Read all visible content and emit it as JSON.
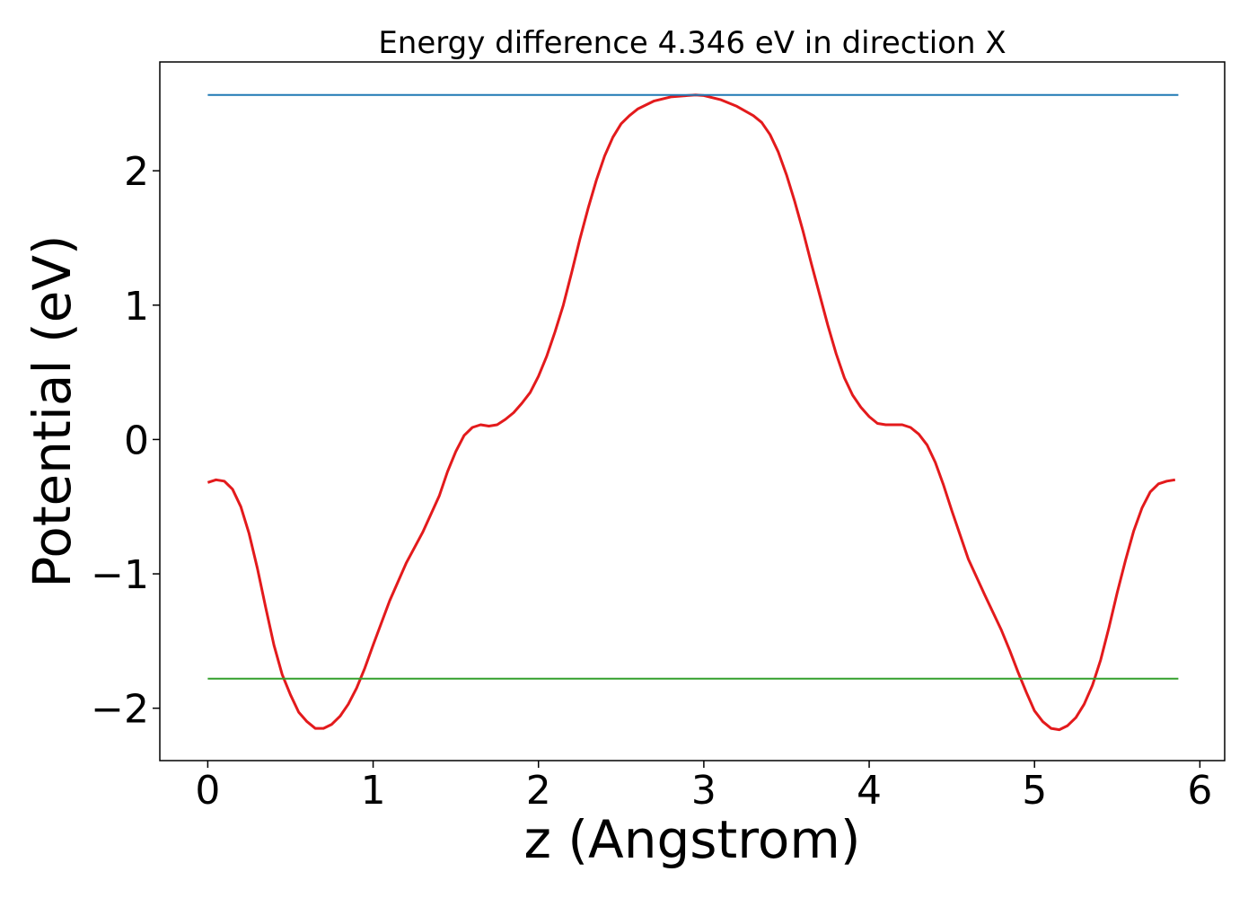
{
  "chart_data": {
    "type": "line",
    "title": "Energy difference 4.346 eV in direction X",
    "xlabel": "z (Angstrom)",
    "ylabel": "Potential (eV)",
    "xlim": [
      -0.29,
      6.15
    ],
    "ylim": [
      -2.39,
      2.81
    ],
    "x_ticks": [
      {
        "value": 0,
        "label": "0"
      },
      {
        "value": 1,
        "label": "1"
      },
      {
        "value": 2,
        "label": "2"
      },
      {
        "value": 3,
        "label": "3"
      },
      {
        "value": 4,
        "label": "4"
      },
      {
        "value": 5,
        "label": "5"
      },
      {
        "value": 6,
        "label": "6"
      }
    ],
    "y_ticks": [
      {
        "value": -2,
        "label": "−2"
      },
      {
        "value": -1,
        "label": "−1"
      },
      {
        "value": 0,
        "label": "0"
      },
      {
        "value": 1,
        "label": "1"
      },
      {
        "value": 2,
        "label": "2"
      }
    ],
    "grid": false,
    "legend": "none",
    "series": [
      {
        "color": "#e31a1c",
        "x": [
          0.0,
          0.05,
          0.1,
          0.15,
          0.2,
          0.25,
          0.3,
          0.35,
          0.4,
          0.45,
          0.5,
          0.55,
          0.6,
          0.65,
          0.7,
          0.75,
          0.8,
          0.85,
          0.9,
          0.95,
          1.0,
          1.1,
          1.2,
          1.3,
          1.4,
          1.45,
          1.5,
          1.55,
          1.6,
          1.65,
          1.7,
          1.75,
          1.8,
          1.85,
          1.9,
          1.95,
          2.0,
          2.05,
          2.1,
          2.15,
          2.2,
          2.25,
          2.3,
          2.35,
          2.4,
          2.45,
          2.5,
          2.55,
          2.6,
          2.7,
          2.8,
          2.9,
          2.95,
          3.0,
          3.1,
          3.2,
          3.3,
          3.35,
          3.4,
          3.45,
          3.5,
          3.55,
          3.6,
          3.65,
          3.7,
          3.75,
          3.8,
          3.85,
          3.9,
          3.95,
          4.0,
          4.05,
          4.1,
          4.15,
          4.2,
          4.25,
          4.3,
          4.35,
          4.4,
          4.45,
          4.5,
          4.55,
          4.6,
          4.7,
          4.8,
          4.85,
          4.9,
          4.95,
          5.0,
          5.05,
          5.1,
          5.15,
          5.2,
          5.25,
          5.3,
          5.35,
          5.4,
          5.45,
          5.5,
          5.55,
          5.6,
          5.65,
          5.7,
          5.75,
          5.8,
          5.85
        ],
        "y": [
          -0.32,
          -0.3,
          -0.31,
          -0.37,
          -0.5,
          -0.7,
          -0.96,
          -1.25,
          -1.53,
          -1.75,
          -1.9,
          -2.03,
          -2.1,
          -2.15,
          -2.15,
          -2.12,
          -2.06,
          -1.97,
          -1.85,
          -1.7,
          -1.53,
          -1.2,
          -0.92,
          -0.69,
          -0.42,
          -0.24,
          -0.09,
          0.03,
          0.09,
          0.11,
          0.1,
          0.11,
          0.15,
          0.2,
          0.27,
          0.35,
          0.47,
          0.62,
          0.8,
          1.0,
          1.24,
          1.49,
          1.72,
          1.93,
          2.11,
          2.25,
          2.35,
          2.41,
          2.46,
          2.52,
          2.55,
          2.56,
          2.565,
          2.56,
          2.53,
          2.48,
          2.41,
          2.36,
          2.27,
          2.14,
          1.97,
          1.77,
          1.55,
          1.31,
          1.08,
          0.85,
          0.64,
          0.46,
          0.33,
          0.24,
          0.17,
          0.12,
          0.11,
          0.11,
          0.11,
          0.09,
          0.04,
          -0.04,
          -0.17,
          -0.34,
          -0.53,
          -0.71,
          -0.89,
          -1.16,
          -1.42,
          -1.57,
          -1.73,
          -1.88,
          -2.02,
          -2.1,
          -2.15,
          -2.16,
          -2.13,
          -2.07,
          -1.97,
          -1.83,
          -1.64,
          -1.4,
          -1.14,
          -0.9,
          -0.68,
          -0.51,
          -0.39,
          -0.33,
          -0.31,
          -0.3
        ]
      },
      {
        "color": "#1f78b4",
        "x": [
          0.0,
          5.87
        ],
        "y": [
          2.565,
          2.565
        ]
      },
      {
        "color": "#33a02c",
        "x": [
          0.0,
          5.87
        ],
        "y": [
          -1.78,
          -1.78
        ]
      }
    ]
  }
}
